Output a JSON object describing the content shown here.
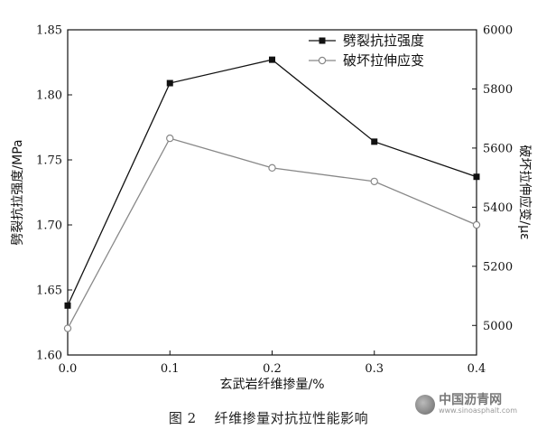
{
  "chart_data": {
    "type": "line",
    "x": [
      0.0,
      0.1,
      0.2,
      0.3,
      0.4
    ],
    "x_tick_labels": [
      "0.0",
      "0.1",
      "0.2",
      "0.3",
      "0.4"
    ],
    "xlim": [
      0.0,
      0.4
    ],
    "xlabel": "玄武岩纤维掺量/%",
    "y_left": {
      "label": "劈裂抗拉强度/MPa",
      "lim": [
        1.6,
        1.85
      ],
      "tick_labels": [
        "1.60",
        "1.65",
        "1.70",
        "1.75",
        "1.80",
        "1.85"
      ],
      "ticks": [
        1.6,
        1.65,
        1.7,
        1.75,
        1.8,
        1.85
      ]
    },
    "y_right": {
      "label": "破坏拉伸应变/με",
      "lim": [
        4900,
        6000
      ],
      "tick_labels": [
        "5000",
        "5200",
        "5400",
        "5600",
        "5800",
        "6000"
      ],
      "ticks": [
        5000,
        5200,
        5400,
        5600,
        5800,
        6000
      ]
    },
    "series": [
      {
        "name": "劈裂抗拉强度",
        "axis": "left",
        "marker": "filled-square",
        "color": "#111111",
        "values": [
          1.638,
          1.809,
          1.827,
          1.764,
          1.737
        ]
      },
      {
        "name": "破坏拉伸应变",
        "axis": "right",
        "marker": "open-circle",
        "color": "#888888",
        "values": [
          4990,
          5633,
          5533,
          5487,
          5340
        ]
      }
    ],
    "legend_position": "top-right",
    "grid": false
  },
  "caption": {
    "figure_no": "图 2",
    "title": "纤维掺量对抗拉性能影响"
  },
  "watermark": {
    "main": "中国沥青网",
    "sub": "www.sinoasphalt.com"
  }
}
